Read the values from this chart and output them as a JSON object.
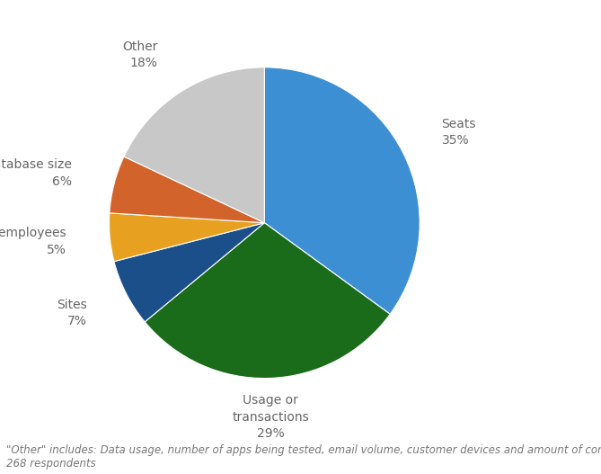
{
  "labels": [
    "Seats",
    "Usage or\ntransactions",
    "Sites",
    "Total employees",
    "Database size",
    "Other"
  ],
  "values": [
    35,
    29,
    7,
    5,
    6,
    18
  ],
  "colors": [
    "#3D8FD4",
    "#1A6B1A",
    "#1B4F8A",
    "#E8A020",
    "#D2632A",
    "#C8C8C8"
  ],
  "startangle": 90,
  "counterclock": false,
  "footnote_line1": "\"Other\" includes: Data usage, number of apps being tested, email volume, customer devices and amount of content",
  "footnote_line2": "268 respondents",
  "background_color": "#ffffff",
  "label_fontsize": 10,
  "footnote_fontsize": 8.5,
  "label_color": "#666666"
}
